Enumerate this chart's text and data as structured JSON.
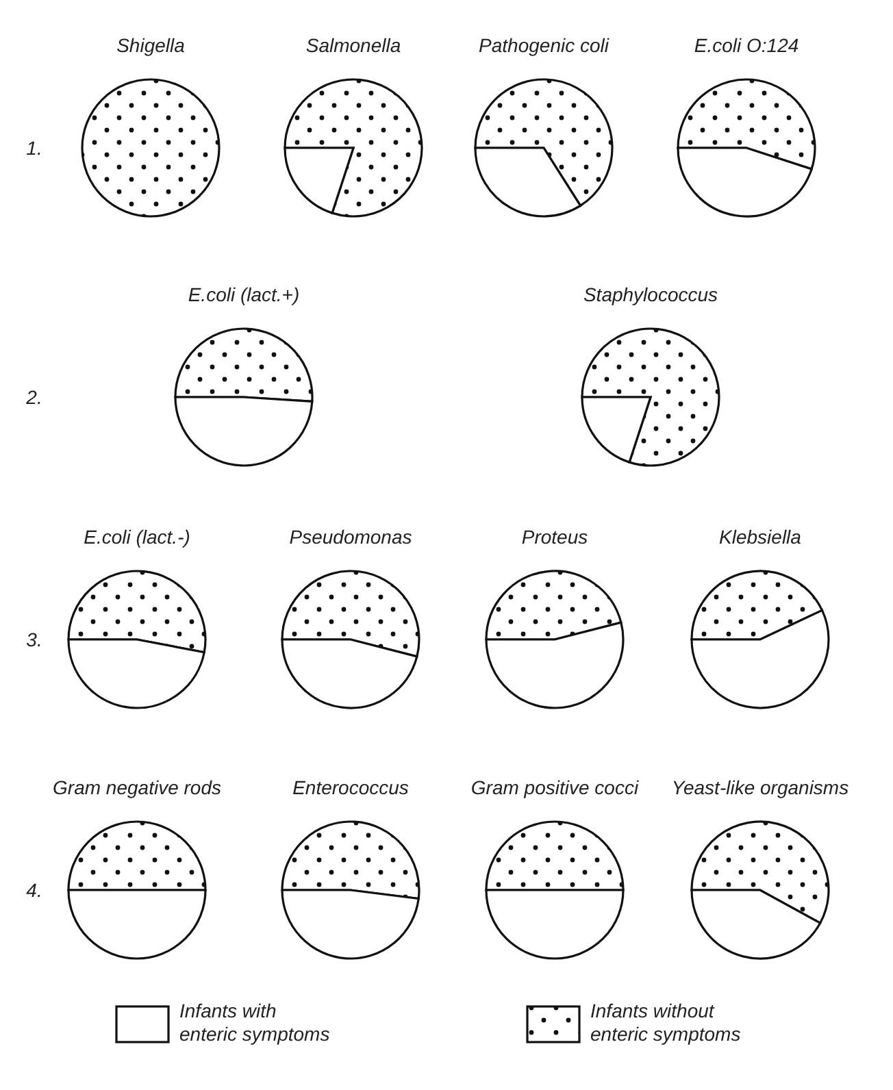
{
  "chart_data": [
    {
      "type": "pie",
      "title": "Shigella",
      "annotations": [
        "1."
      ],
      "categories": [
        null,
        null
      ],
      "values": [
        0,
        100
      ],
      "colors": [
        "#ffffff",
        "#ffffff"
      ]
    },
    {
      "type": "pie",
      "title": "Salmonella",
      "categories": [
        null,
        null
      ],
      "values": [
        20,
        80
      ],
      "colors": [
        "#ffffff",
        "#ffffff"
      ]
    },
    {
      "type": "pie",
      "title": "Pathogenic coli",
      "categories": [
        null,
        null
      ],
      "values": [
        34,
        66
      ],
      "colors": [
        "#ffffff",
        "#ffffff"
      ]
    },
    {
      "type": "pie",
      "title": "E.coli O:124",
      "categories": [
        null,
        null
      ],
      "values": [
        45,
        55
      ],
      "colors": [
        "#ffffff",
        "#ffffff"
      ]
    },
    {
      "type": "pie",
      "title": "E.coli (lact.+)",
      "annotations": [
        "2."
      ],
      "categories": [
        null,
        null
      ],
      "values": [
        49,
        51
      ],
      "colors": [
        "#ffffff",
        "#ffffff"
      ]
    },
    {
      "type": "pie",
      "title": "Staphylococcus",
      "categories": [
        null,
        null
      ],
      "values": [
        20,
        80
      ],
      "colors": [
        "#ffffff",
        "#ffffff"
      ]
    },
    {
      "type": "pie",
      "title": "E.coli (lact.-)",
      "annotations": [
        "3."
      ],
      "categories": [
        null,
        null
      ],
      "values": [
        47,
        53
      ],
      "colors": [
        "#ffffff",
        "#ffffff"
      ]
    },
    {
      "type": "pie",
      "title": "Pseudomonas",
      "categories": [
        null,
        null
      ],
      "values": [
        46,
        54
      ],
      "colors": [
        "#ffffff",
        "#ffffff"
      ]
    },
    {
      "type": "pie",
      "title": "Proteus",
      "categories": [
        null,
        null
      ],
      "values": [
        54,
        46
      ],
      "colors": [
        "#ffffff",
        "#ffffff"
      ]
    },
    {
      "type": "pie",
      "title": "Klebsiella",
      "categories": [
        null,
        null
      ],
      "values": [
        57,
        43
      ],
      "colors": [
        "#ffffff",
        "#ffffff"
      ]
    },
    {
      "type": "pie",
      "title": "Gram negative rods",
      "annotations": [
        "4."
      ],
      "categories": [
        null,
        null
      ],
      "values": [
        50,
        50
      ],
      "colors": [
        "#ffffff",
        "#ffffff"
      ]
    },
    {
      "type": "pie",
      "title": "Enterococcus",
      "categories": [
        null,
        null
      ],
      "values": [
        48,
        52
      ],
      "colors": [
        "#ffffff",
        "#ffffff"
      ]
    },
    {
      "type": "pie",
      "title": "Gram positive cocci",
      "categories": [
        null,
        null
      ],
      "values": [
        50,
        50
      ],
      "colors": [
        "#ffffff",
        "#ffffff"
      ]
    },
    {
      "type": "pie",
      "title": "Yeast-like organisms",
      "categories": [
        "Infants with enteric symptoms",
        "Infants without enteric symptoms"
      ],
      "values": [
        42,
        58
      ],
      "colors": [
        "#ffffff",
        "#ffffff"
      ],
      "legend": "bottom"
    }
  ]
}
